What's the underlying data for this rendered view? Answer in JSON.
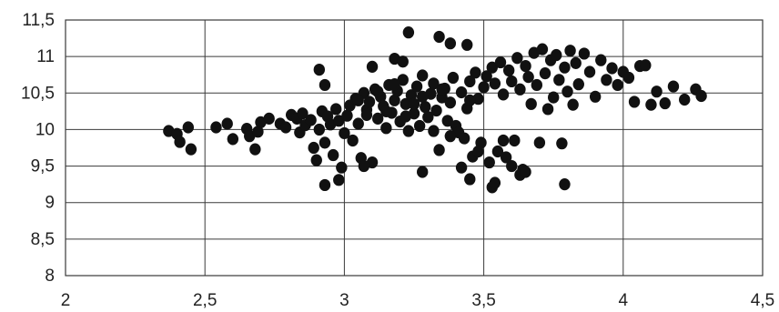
{
  "chart_data": {
    "type": "scatter",
    "title": "",
    "xlabel": "",
    "ylabel": "",
    "xlim": [
      2,
      4.5
    ],
    "ylim": [
      8,
      11.5
    ],
    "x_ticks": [
      "2",
      "2,5",
      "3",
      "3,5",
      "4",
      "4,5"
    ],
    "x_tick_values": [
      2,
      2.5,
      3,
      3.5,
      4,
      4.5
    ],
    "y_ticks": [
      "8",
      "8,5",
      "9",
      "9,5",
      "10",
      "10,5",
      "11",
      "11,5"
    ],
    "y_tick_values": [
      8,
      8.5,
      9,
      9.5,
      10,
      10.5,
      11,
      11.5
    ],
    "grid": true,
    "legend": "none",
    "marker_color": "#111111",
    "series": [
      {
        "points": [
          [
            2.37,
            9.98
          ],
          [
            2.4,
            9.94
          ],
          [
            2.41,
            9.83
          ],
          [
            2.44,
            10.03
          ],
          [
            2.45,
            9.73
          ],
          [
            2.54,
            10.03
          ],
          [
            2.58,
            10.08
          ],
          [
            2.6,
            9.87
          ],
          [
            2.65,
            10.01
          ],
          [
            2.66,
            9.91
          ],
          [
            2.68,
            9.73
          ],
          [
            2.69,
            9.97
          ],
          [
            2.7,
            10.1
          ],
          [
            2.73,
            10.15
          ],
          [
            2.77,
            10.08
          ],
          [
            2.79,
            10.03
          ],
          [
            2.81,
            10.2
          ],
          [
            2.83,
            10.15
          ],
          [
            2.84,
            9.96
          ],
          [
            2.85,
            10.22
          ],
          [
            2.86,
            10.06
          ],
          [
            2.88,
            10.13
          ],
          [
            2.89,
            9.75
          ],
          [
            2.9,
            9.58
          ],
          [
            2.91,
            10.0
          ],
          [
            2.92,
            10.25
          ],
          [
            2.93,
            9.82
          ],
          [
            2.94,
            10.18
          ],
          [
            2.95,
            10.07
          ],
          [
            2.96,
            9.65
          ],
          [
            2.97,
            10.28
          ],
          [
            2.98,
            10.12
          ],
          [
            2.99,
            9.48
          ],
          [
            3.0,
            9.95
          ],
          [
            3.01,
            10.19
          ],
          [
            3.02,
            10.33
          ],
          [
            3.03,
            9.85
          ],
          [
            3.04,
            10.42
          ],
          [
            3.05,
            10.08
          ],
          [
            3.06,
            9.61
          ],
          [
            3.07,
            10.5
          ],
          [
            3.08,
            10.27
          ],
          [
            3.09,
            10.38
          ],
          [
            3.1,
            9.55
          ],
          [
            3.11,
            10.55
          ],
          [
            3.12,
            10.15
          ],
          [
            3.13,
            10.45
          ],
          [
            3.14,
            10.32
          ],
          [
            3.15,
            10.02
          ],
          [
            3.16,
            10.61
          ],
          [
            3.17,
            10.23
          ],
          [
            3.18,
            10.4
          ],
          [
            3.19,
            10.53
          ],
          [
            3.2,
            10.11
          ],
          [
            3.21,
            10.68
          ],
          [
            3.22,
            10.35
          ],
          [
            3.23,
            9.98
          ],
          [
            3.24,
            10.47
          ],
          [
            3.25,
            10.22
          ],
          [
            3.26,
            10.59
          ],
          [
            3.27,
            10.05
          ],
          [
            3.28,
            10.74
          ],
          [
            3.29,
            10.31
          ],
          [
            3.3,
            10.17
          ],
          [
            3.31,
            10.49
          ],
          [
            3.32,
            10.63
          ],
          [
            3.33,
            10.26
          ],
          [
            3.34,
            9.72
          ],
          [
            3.35,
            10.44
          ],
          [
            3.36,
            10.56
          ],
          [
            3.37,
            10.12
          ],
          [
            3.38,
            10.37
          ],
          [
            3.39,
            10.71
          ],
          [
            3.4,
            10.05
          ],
          [
            3.41,
            9.96
          ],
          [
            3.42,
            10.51
          ],
          [
            3.43,
            9.88
          ],
          [
            3.44,
            10.29
          ],
          [
            3.45,
            10.66
          ],
          [
            3.46,
            9.63
          ],
          [
            3.47,
            10.78
          ],
          [
            3.48,
            10.42
          ],
          [
            3.49,
            9.82
          ],
          [
            3.5,
            10.58
          ],
          [
            3.51,
            10.73
          ],
          [
            3.52,
            9.55
          ],
          [
            3.53,
            10.85
          ],
          [
            3.54,
            10.63
          ],
          [
            3.55,
            9.7
          ],
          [
            3.56,
            10.92
          ],
          [
            3.57,
            10.48
          ],
          [
            3.58,
            9.62
          ],
          [
            3.59,
            10.81
          ],
          [
            3.6,
            10.66
          ],
          [
            3.61,
            9.85
          ],
          [
            3.62,
            10.98
          ],
          [
            3.63,
            10.55
          ],
          [
            3.64,
            9.45
          ],
          [
            3.65,
            10.87
          ],
          [
            3.66,
            10.72
          ],
          [
            3.67,
            10.35
          ],
          [
            3.68,
            11.05
          ],
          [
            3.69,
            10.61
          ],
          [
            3.7,
            9.82
          ],
          [
            3.71,
            11.1
          ],
          [
            3.72,
            10.77
          ],
          [
            3.73,
            10.28
          ],
          [
            3.74,
            10.95
          ],
          [
            3.75,
            10.44
          ],
          [
            3.76,
            11.02
          ],
          [
            3.77,
            10.68
          ],
          [
            3.78,
            9.81
          ],
          [
            3.79,
            10.85
          ],
          [
            3.8,
            10.52
          ],
          [
            3.81,
            11.08
          ],
          [
            3.82,
            10.34
          ],
          [
            3.83,
            10.91
          ],
          [
            3.84,
            10.62
          ],
          [
            3.86,
            11.04
          ],
          [
            3.88,
            10.79
          ],
          [
            3.9,
            10.45
          ],
          [
            3.92,
            10.95
          ],
          [
            3.94,
            10.68
          ],
          [
            3.96,
            10.84
          ],
          [
            3.98,
            10.61
          ],
          [
            4.0,
            10.79
          ],
          [
            4.02,
            10.71
          ],
          [
            4.04,
            10.38
          ],
          [
            4.06,
            10.87
          ],
          [
            4.08,
            10.88
          ],
          [
            4.1,
            10.34
          ],
          [
            4.12,
            10.52
          ],
          [
            4.15,
            10.36
          ],
          [
            4.18,
            10.59
          ],
          [
            4.22,
            10.41
          ],
          [
            4.26,
            10.55
          ],
          [
            4.28,
            10.46
          ],
          [
            2.93,
            9.24
          ],
          [
            2.98,
            9.31
          ],
          [
            3.07,
            9.5
          ],
          [
            3.23,
            11.33
          ],
          [
            3.34,
            11.27
          ],
          [
            3.38,
            11.18
          ],
          [
            3.44,
            11.16
          ],
          [
            3.28,
            9.42
          ],
          [
            3.45,
            9.32
          ],
          [
            3.53,
            9.21
          ],
          [
            3.54,
            9.27
          ],
          [
            3.63,
            9.38
          ],
          [
            3.65,
            9.42
          ],
          [
            3.79,
            9.25
          ],
          [
            2.91,
            10.82
          ],
          [
            2.93,
            10.61
          ],
          [
            3.1,
            10.86
          ],
          [
            3.18,
            10.97
          ],
          [
            3.21,
            10.93
          ],
          [
            3.57,
            9.85
          ],
          [
            3.6,
            9.5
          ],
          [
            3.48,
            9.7
          ],
          [
            3.42,
            9.48
          ],
          [
            3.38,
            9.91
          ],
          [
            3.32,
            9.98
          ],
          [
            3.05,
            10.4
          ],
          [
            3.15,
            10.25
          ],
          [
            3.25,
            10.35
          ],
          [
            3.35,
            10.55
          ],
          [
            3.45,
            10.4
          ],
          [
            3.12,
            10.52
          ],
          [
            3.22,
            10.18
          ],
          [
            3.28,
            10.45
          ],
          [
            3.18,
            10.62
          ],
          [
            3.08,
            10.2
          ]
        ]
      }
    ]
  }
}
